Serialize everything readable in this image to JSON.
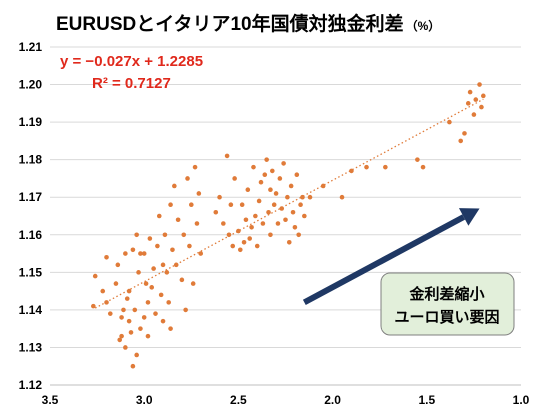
{
  "chart_data": {
    "type": "scatter",
    "title": "EURUSDとイタリア10年国債対独金利差",
    "title_unit": "（%）",
    "x_axis": {
      "min": 1.0,
      "max": 3.5,
      "reversed": true,
      "ticks": [
        3.5,
        3.0,
        2.5,
        2.0,
        1.5,
        1.0
      ],
      "tick_labels": [
        "3.5",
        "3.0",
        "2.5",
        "2.0",
        "1.5",
        "1.0"
      ]
    },
    "y_axis": {
      "min": 1.12,
      "max": 1.21,
      "ticks": [
        1.12,
        1.13,
        1.14,
        1.15,
        1.16,
        1.17,
        1.18,
        1.19,
        1.2,
        1.21
      ],
      "tick_labels": [
        "1.12",
        "1.13",
        "1.14",
        "1.15",
        "1.16",
        "1.17",
        "1.18",
        "1.19",
        "1.20",
        "1.21"
      ]
    },
    "grid": {
      "horizontal": true,
      "vertical": false
    },
    "trendline": {
      "slope": -0.027,
      "intercept": 1.2285,
      "style": "dotted"
    },
    "equation_text": "y = −0.027x + 1.2285",
    "r2_text": "R² = 0.7127",
    "annotation": {
      "line1": "金利差縮小",
      "line2": "ユーロ買い要因"
    },
    "arrow": {
      "from": [
        2.15,
        1.142
      ],
      "to": [
        1.22,
        1.167
      ],
      "color": "#1F3864"
    },
    "point_color": "#E07B39",
    "points": [
      [
        3.27,
        1.141
      ],
      [
        3.26,
        1.149
      ],
      [
        3.22,
        1.145
      ],
      [
        3.2,
        1.154
      ],
      [
        3.2,
        1.142
      ],
      [
        3.18,
        1.139
      ],
      [
        3.15,
        1.147
      ],
      [
        3.14,
        1.152
      ],
      [
        3.13,
        1.132
      ],
      [
        3.12,
        1.138
      ],
      [
        3.12,
        1.133
      ],
      [
        3.11,
        1.14
      ],
      [
        3.1,
        1.155
      ],
      [
        3.1,
        1.13
      ],
      [
        3.09,
        1.143
      ],
      [
        3.08,
        1.137
      ],
      [
        3.08,
        1.145
      ],
      [
        3.07,
        1.134
      ],
      [
        3.06,
        1.156
      ],
      [
        3.06,
        1.125
      ],
      [
        3.05,
        1.14
      ],
      [
        3.04,
        1.16
      ],
      [
        3.04,
        1.128
      ],
      [
        3.03,
        1.15
      ],
      [
        3.02,
        1.135
      ],
      [
        3.02,
        1.155
      ],
      [
        3.0,
        1.138
      ],
      [
        3.0,
        1.155
      ],
      [
        2.99,
        1.147
      ],
      [
        2.98,
        1.142
      ],
      [
        2.98,
        1.133
      ],
      [
        2.97,
        1.159
      ],
      [
        2.96,
        1.146
      ],
      [
        2.95,
        1.151
      ],
      [
        2.94,
        1.139
      ],
      [
        2.93,
        1.157
      ],
      [
        2.92,
        1.165
      ],
      [
        2.91,
        1.144
      ],
      [
        2.9,
        1.152
      ],
      [
        2.9,
        1.137
      ],
      [
        2.89,
        1.16
      ],
      [
        2.88,
        1.15
      ],
      [
        2.87,
        1.142
      ],
      [
        2.86,
        1.168
      ],
      [
        2.86,
        1.135
      ],
      [
        2.85,
        1.156
      ],
      [
        2.84,
        1.173
      ],
      [
        2.83,
        1.152
      ],
      [
        2.82,
        1.164
      ],
      [
        2.8,
        1.148
      ],
      [
        2.79,
        1.16
      ],
      [
        2.78,
        1.14
      ],
      [
        2.77,
        1.175
      ],
      [
        2.76,
        1.157
      ],
      [
        2.75,
        1.168
      ],
      [
        2.74,
        1.147
      ],
      [
        2.73,
        1.178
      ],
      [
        2.72,
        1.163
      ],
      [
        2.71,
        1.171
      ],
      [
        2.7,
        1.155
      ],
      [
        2.62,
        1.166
      ],
      [
        2.6,
        1.17
      ],
      [
        2.58,
        1.163
      ],
      [
        2.56,
        1.181
      ],
      [
        2.55,
        1.16
      ],
      [
        2.54,
        1.168
      ],
      [
        2.53,
        1.157
      ],
      [
        2.52,
        1.175
      ],
      [
        2.5,
        1.161
      ],
      [
        2.49,
        1.156
      ],
      [
        2.48,
        1.168
      ],
      [
        2.47,
        1.158
      ],
      [
        2.46,
        1.164
      ],
      [
        2.45,
        1.172
      ],
      [
        2.44,
        1.159
      ],
      [
        2.43,
        1.162
      ],
      [
        2.42,
        1.178
      ],
      [
        2.41,
        1.165
      ],
      [
        2.4,
        1.157
      ],
      [
        2.39,
        1.169
      ],
      [
        2.38,
        1.174
      ],
      [
        2.37,
        1.163
      ],
      [
        2.36,
        1.176
      ],
      [
        2.35,
        1.18
      ],
      [
        2.34,
        1.166
      ],
      [
        2.33,
        1.172
      ],
      [
        2.33,
        1.16
      ],
      [
        2.32,
        1.177
      ],
      [
        2.31,
        1.168
      ],
      [
        2.3,
        1.171
      ],
      [
        2.29,
        1.163
      ],
      [
        2.28,
        1.175
      ],
      [
        2.27,
        1.167
      ],
      [
        2.26,
        1.179
      ],
      [
        2.25,
        1.164
      ],
      [
        2.24,
        1.17
      ],
      [
        2.23,
        1.158
      ],
      [
        2.22,
        1.173
      ],
      [
        2.21,
        1.166
      ],
      [
        2.2,
        1.162
      ],
      [
        2.19,
        1.176
      ],
      [
        2.18,
        1.16
      ],
      [
        2.17,
        1.168
      ],
      [
        2.16,
        1.17
      ],
      [
        2.15,
        1.165
      ],
      [
        2.12,
        1.17
      ],
      [
        2.05,
        1.173
      ],
      [
        1.95,
        1.17
      ],
      [
        1.9,
        1.177
      ],
      [
        1.82,
        1.178
      ],
      [
        1.72,
        1.178
      ],
      [
        1.55,
        1.18
      ],
      [
        1.52,
        1.178
      ],
      [
        1.38,
        1.19
      ],
      [
        1.32,
        1.185
      ],
      [
        1.3,
        1.187
      ],
      [
        1.28,
        1.195
      ],
      [
        1.27,
        1.198
      ],
      [
        1.25,
        1.192
      ],
      [
        1.24,
        1.196
      ],
      [
        1.22,
        1.2
      ],
      [
        1.21,
        1.194
      ],
      [
        1.2,
        1.197
      ]
    ]
  }
}
